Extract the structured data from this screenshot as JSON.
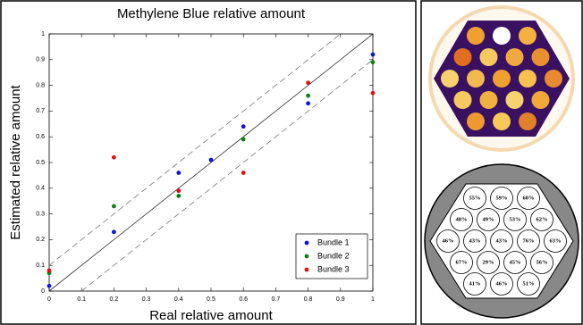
{
  "chart_data": {
    "type": "scatter",
    "title": "Methylene Blue relative amount",
    "x_label": "Real relative amount",
    "y_label": "Estimated relative amount",
    "xlim": [
      0,
      1
    ],
    "ylim": [
      0,
      1
    ],
    "xticks": [
      0,
      0.1,
      0.2,
      0.3,
      0.4,
      0.5,
      0.6,
      0.7,
      0.8,
      0.9,
      1
    ],
    "yticks": [
      0,
      0.1,
      0.2,
      0.3,
      0.4,
      0.5,
      0.6,
      0.7,
      0.8,
      0.9,
      1
    ],
    "legend": "lower right",
    "reference_lines": [
      {
        "slope": 1,
        "offset": 0,
        "style": "solid"
      },
      {
        "slope": 1,
        "offset": 0.1,
        "style": "dashed"
      },
      {
        "slope": 1,
        "offset": -0.1,
        "style": "dashed"
      }
    ],
    "series": [
      {
        "name": "Bundle 1",
        "color": "#1010e0",
        "x": [
          0,
          0.2,
          0.4,
          0.5,
          0.6,
          0.8,
          1
        ],
        "values": [
          0.02,
          0.23,
          0.46,
          0.51,
          0.64,
          0.73,
          0.92
        ]
      },
      {
        "name": "Bundle 2",
        "color": "#108010",
        "x": [
          0,
          0.2,
          0.4,
          0.6,
          0.8,
          1
        ],
        "values": [
          0.07,
          0.33,
          0.37,
          0.59,
          0.76,
          0.89
        ]
      },
      {
        "name": "Bundle 3",
        "color": "#e01010",
        "x": [
          0,
          0.2,
          0.4,
          0.6,
          0.8,
          1
        ],
        "values": [
          0.08,
          0.52,
          0.39,
          0.46,
          0.81,
          0.77
        ]
      }
    ]
  },
  "bundle_map": {
    "labels": [
      [
        "55%",
        "59%",
        "60%"
      ],
      [
        "48%",
        "49%",
        "53%",
        "62%"
      ],
      [
        "46%",
        "43%",
        "43%",
        "76%",
        "63%"
      ],
      [
        "67%",
        "29%",
        "45%",
        "56%"
      ],
      [
        "41%",
        "46%",
        "51%"
      ]
    ]
  }
}
